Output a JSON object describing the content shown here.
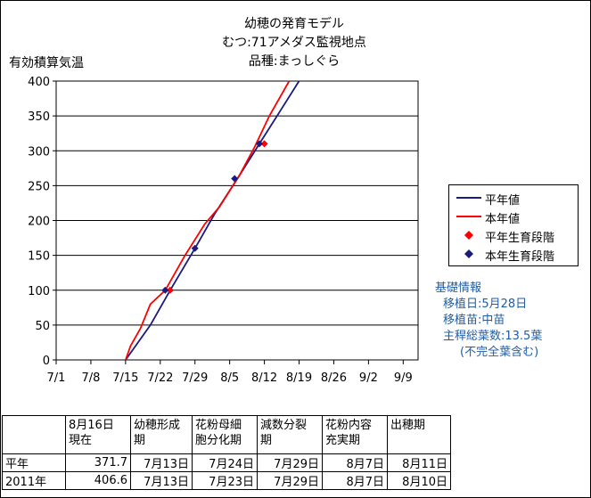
{
  "titles": [
    "幼穂の発育モデル",
    "むつ:71アメダス監視地点",
    "品種:まっしぐら"
  ],
  "chart_data": {
    "type": "line",
    "ylabel": "有効積算気温",
    "ylim": [
      0,
      400
    ],
    "yticks": [
      0,
      50,
      100,
      150,
      200,
      250,
      300,
      350,
      400
    ],
    "xticks": [
      "7/1",
      "7/8",
      "7/15",
      "7/22",
      "7/29",
      "8/5",
      "8/12",
      "8/19",
      "8/26",
      "9/2",
      "9/9"
    ],
    "x_start": "7/1",
    "x_end": "9/12",
    "grid": "horizontal",
    "legend_position": "right",
    "series": [
      {
        "name": "平年値",
        "type": "line",
        "color": "#1a1a80",
        "points": [
          [
            "7/15",
            0
          ],
          [
            "7/20",
            50
          ],
          [
            "7/24",
            100
          ],
          [
            "7/29",
            160
          ],
          [
            "8/2",
            210
          ],
          [
            "8/7",
            265
          ],
          [
            "8/11",
            310
          ],
          [
            "8/15",
            355
          ],
          [
            "8/19",
            400
          ]
        ]
      },
      {
        "name": "本年値",
        "type": "line",
        "color": "#ff0000",
        "points": [
          [
            "7/15",
            0
          ],
          [
            "7/16",
            20
          ],
          [
            "7/18",
            45
          ],
          [
            "7/20",
            80
          ],
          [
            "7/23",
            100
          ],
          [
            "7/27",
            150
          ],
          [
            "7/31",
            195
          ],
          [
            "8/3",
            220
          ],
          [
            "8/7",
            265
          ],
          [
            "8/10",
            305
          ],
          [
            "8/13",
            350
          ],
          [
            "8/17",
            400
          ]
        ]
      },
      {
        "name": "平年生育段階",
        "type": "scatter",
        "color": "#ff0000",
        "points": [
          [
            "7/24",
            100
          ],
          [
            "8/12",
            310
          ]
        ]
      },
      {
        "name": "本年生育段階",
        "type": "scatter",
        "color": "#1a1a80",
        "points": [
          [
            "7/23",
            100
          ],
          [
            "7/29",
            160
          ],
          [
            "8/6",
            260
          ],
          [
            "8/11",
            310
          ]
        ]
      }
    ]
  },
  "info": {
    "heading": "基礎情報",
    "lines": [
      "移植日:5月28日",
      "移植苗:中苗",
      "主稈総葉数:13.5葉",
      "(不完全葉含む)"
    ]
  },
  "table": {
    "headers": [
      "",
      "8月16日\n現在",
      "幼穂形成\n期",
      "花粉母細\n胞分化期",
      "減数分裂\n期",
      "花粉内容\n充実期",
      "出穂期"
    ],
    "rows": [
      [
        "平年",
        "371.7",
        "7月13日",
        "7月24日",
        "7月29日",
        "8月7日",
        "8月11日"
      ],
      [
        "2011年",
        "406.6",
        "7月13日",
        "7月23日",
        "7月29日",
        "8月7日",
        "8月10日"
      ]
    ]
  }
}
